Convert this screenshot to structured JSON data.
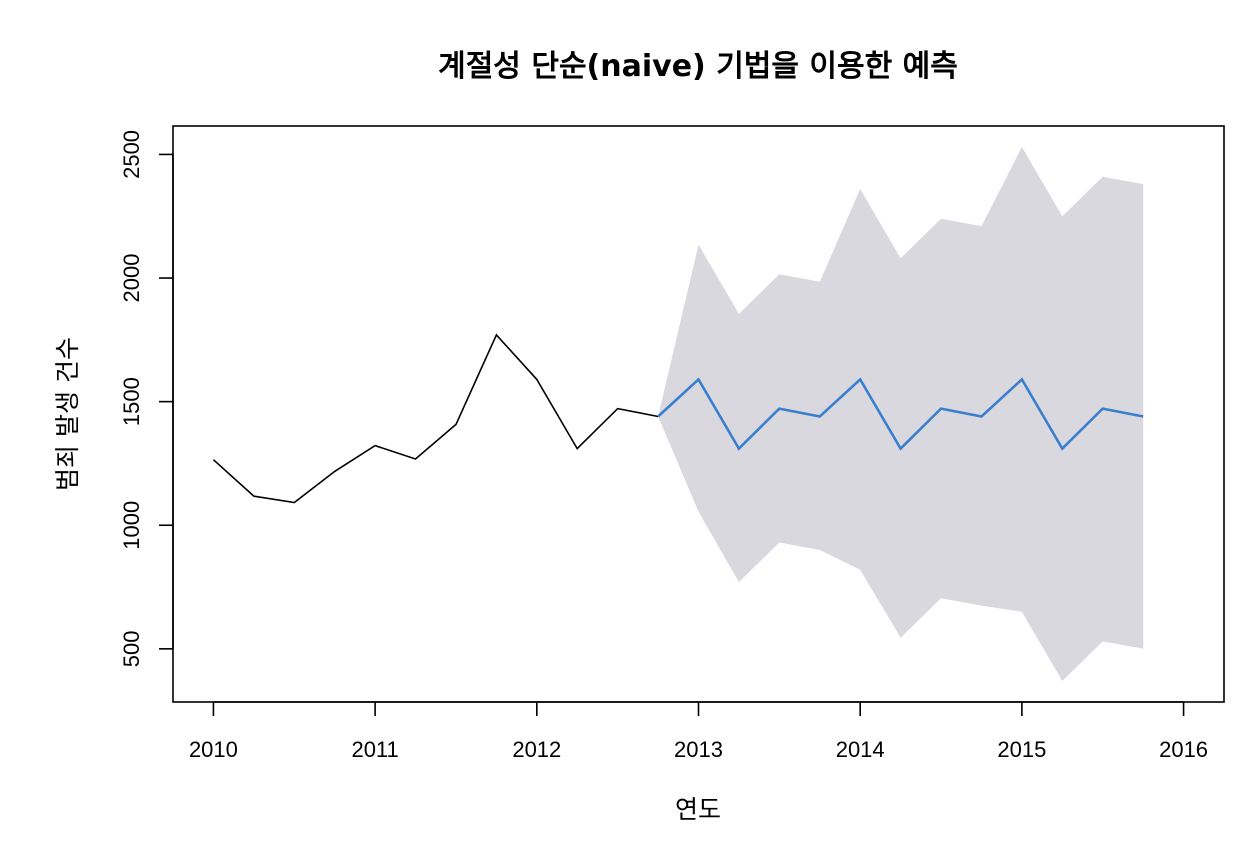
{
  "chart_data": {
    "type": "line",
    "title": "계절성 단순(naive) 기법을 이용한 예측",
    "xlabel": "연도",
    "ylabel": "범죄 발생 건수",
    "xlim": [
      2009.75,
      2016.25
    ],
    "ylim": [
      285,
      2615
    ],
    "xticks": [
      2010,
      2011,
      2012,
      2013,
      2014,
      2015,
      2016
    ],
    "yticks": [
      500,
      1000,
      1500,
      2000,
      2500
    ],
    "grid": false,
    "legend": "none",
    "colors": {
      "observed": "#000000",
      "forecast": "#3a7fcf",
      "interval": "#dad8df"
    },
    "series": [
      {
        "role": "observed",
        "x": [
          2010.0,
          2010.25,
          2010.5,
          2010.75,
          2011.0,
          2011.25,
          2011.5,
          2011.75,
          2012.0,
          2012.25,
          2012.5,
          2012.75
        ],
        "values": [
          1265,
          1118,
          1092,
          1218,
          1322,
          1268,
          1408,
          1770,
          1590,
          1310,
          1472,
          1440
        ]
      },
      {
        "role": "forecast",
        "x": [
          2012.75,
          2013.0,
          2013.25,
          2013.5,
          2013.75,
          2014.0,
          2014.25,
          2014.5,
          2014.75,
          2015.0,
          2015.25,
          2015.5,
          2015.75
        ],
        "values": [
          1440,
          1590,
          1310,
          1472,
          1440,
          1590,
          1310,
          1472,
          1440,
          1590,
          1310,
          1472,
          1440
        ]
      }
    ],
    "interval": {
      "x": [
        2012.75,
        2013.0,
        2013.25,
        2013.5,
        2013.75,
        2014.0,
        2014.25,
        2014.5,
        2014.75,
        2015.0,
        2015.25,
        2015.5,
        2015.75
      ],
      "upper": [
        1440,
        2135,
        1855,
        2015,
        1985,
        2360,
        2080,
        2240,
        2210,
        2530,
        2250,
        2410,
        2380
      ],
      "lower": [
        1440,
        1055,
        770,
        930,
        900,
        820,
        545,
        705,
        675,
        650,
        370,
        530,
        500
      ]
    }
  }
}
